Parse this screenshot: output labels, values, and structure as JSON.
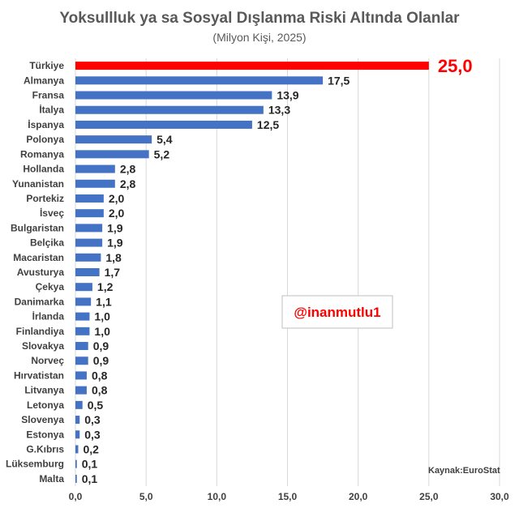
{
  "chart_data": {
    "type": "bar",
    "orientation": "horizontal",
    "title": "Yoksullluk ya sa Sosyal Dışlanma Riski Altında Olanlar",
    "subtitle": "(Milyon Kişi, 2025)",
    "categories": [
      "Türkiye",
      "Almanya",
      "Fransa",
      "İtalya",
      "İspanya",
      "Polonya",
      "Romanya",
      "Hollanda",
      "Yunanistan",
      "Portekiz",
      "İsveç",
      "Bulgaristan",
      "Belçika",
      "Macaristan",
      "Avusturya",
      "Çekya",
      "Danimarka",
      "İrlanda",
      "Finlandiya",
      "Slovakya",
      "Norveç",
      "Hırvatistan",
      "Litvanya",
      "Letonya",
      "Slovenya",
      "Estonya",
      "G.Kıbrıs",
      "Lüksemburg",
      "Malta"
    ],
    "values": [
      25.0,
      17.5,
      13.9,
      13.3,
      12.5,
      5.4,
      5.2,
      2.8,
      2.8,
      2.0,
      2.0,
      1.9,
      1.9,
      1.8,
      1.7,
      1.2,
      1.1,
      1.0,
      1.0,
      0.9,
      0.9,
      0.8,
      0.8,
      0.5,
      0.3,
      0.3,
      0.2,
      0.1,
      0.1
    ],
    "value_labels": [
      "25,0",
      "17,5",
      "13,9",
      "13,3",
      "12,5",
      "5,4",
      "5,2",
      "2,8",
      "2,8",
      "2,0",
      "2,0",
      "1,9",
      "1,9",
      "1,8",
      "1,7",
      "1,2",
      "1,1",
      "1,0",
      "1,0",
      "0,9",
      "0,9",
      "0,8",
      "0,8",
      "0,5",
      "0,3",
      "0,3",
      "0,2",
      "0,1",
      "0,1"
    ],
    "xlim": [
      0,
      30
    ],
    "x_ticks": [
      0,
      5,
      10,
      15,
      20,
      25,
      30
    ],
    "x_tick_labels": [
      "0,0",
      "5,0",
      "10,0",
      "15,0",
      "20,0",
      "25,0",
      "30,0"
    ],
    "grid": true,
    "highlight_index": 0,
    "highlight_color": "#ff0000",
    "bar_color": "#4472c4",
    "source_note": "Kaynak:EuroStat"
  },
  "watermark": {
    "text": "@inanmutlu1",
    "color": "#ff0000"
  }
}
